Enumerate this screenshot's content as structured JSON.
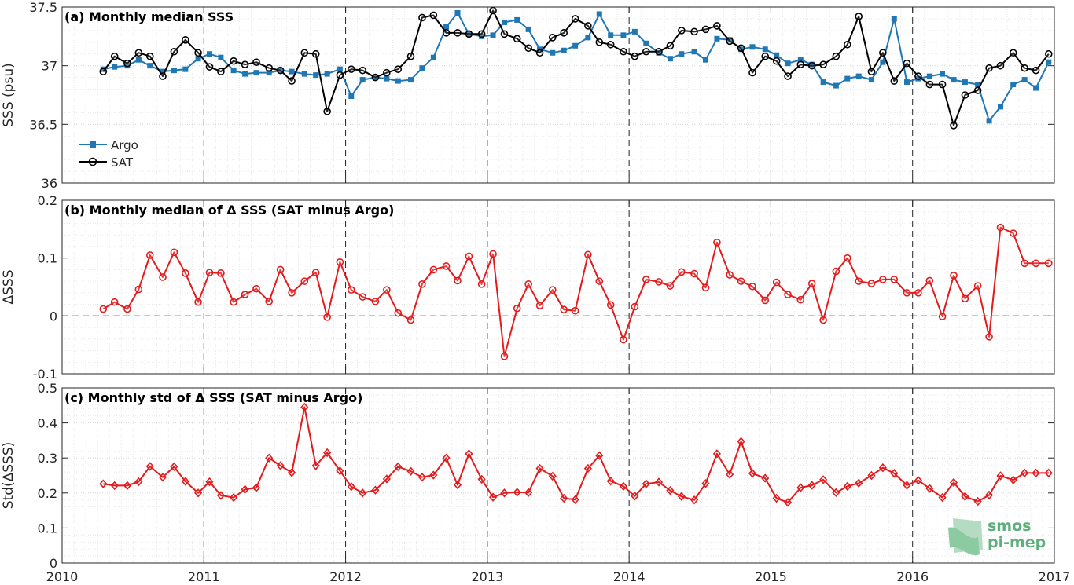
{
  "colors": {
    "argo": "#1f77b4",
    "sat": "#000000",
    "delta": "#e41a1c",
    "axis": "#262626"
  },
  "logo": {
    "line1": "smos",
    "line2": "pi-mep",
    "icon": "smos-pimep-logo-icon"
  },
  "chart_data": [
    {
      "type": "line",
      "title": "(a) Monthly median SSS",
      "ylabel": "SSS (psu)",
      "xlim": [
        2010,
        2017
      ],
      "ylim": [
        36,
        37.5
      ],
      "yticks": [
        36,
        36.5,
        37,
        37.5
      ],
      "ytick_labels": [
        "36",
        "36.5",
        "37",
        "37.5"
      ],
      "grid": true,
      "legend_position": "lower-left",
      "x": [
        2010.29,
        2010.37,
        2010.46,
        2010.54,
        2010.62,
        2010.71,
        2010.79,
        2010.87,
        2010.96,
        2011.04,
        2011.12,
        2011.21,
        2011.29,
        2011.37,
        2011.46,
        2011.54,
        2011.62,
        2011.71,
        2011.79,
        2011.87,
        2011.96,
        2012.04,
        2012.12,
        2012.21,
        2012.29,
        2012.37,
        2012.46,
        2012.54,
        2012.62,
        2012.71,
        2012.79,
        2012.87,
        2012.96,
        2013.04,
        2013.12,
        2013.21,
        2013.29,
        2013.37,
        2013.46,
        2013.54,
        2013.62,
        2013.71,
        2013.79,
        2013.87,
        2013.96,
        2014.04,
        2014.12,
        2014.21,
        2014.29,
        2014.37,
        2014.46,
        2014.54,
        2014.62,
        2014.71,
        2014.79,
        2014.87,
        2014.96,
        2015.04,
        2015.12,
        2015.21,
        2015.29,
        2015.37,
        2015.46,
        2015.54,
        2015.62,
        2015.71,
        2015.79,
        2015.87,
        2015.96,
        2016.04,
        2016.12,
        2016.21,
        2016.29,
        2016.37,
        2016.46,
        2016.54,
        2016.62,
        2016.71,
        2016.79,
        2016.87,
        2016.96
      ],
      "series": [
        {
          "name": "Argo",
          "marker": "square",
          "values": [
            36.97,
            36.99,
            37.0,
            37.05,
            37.0,
            36.95,
            36.96,
            36.97,
            37.06,
            37.1,
            37.07,
            36.96,
            36.93,
            36.94,
            36.94,
            36.96,
            36.95,
            36.93,
            36.92,
            36.93,
            36.97,
            36.74,
            36.88,
            36.9,
            36.89,
            36.87,
            36.88,
            36.98,
            37.07,
            37.33,
            37.45,
            37.27,
            37.25,
            37.26,
            37.37,
            37.39,
            37.31,
            37.14,
            37.11,
            37.13,
            37.17,
            37.24,
            37.44,
            37.26,
            37.26,
            37.29,
            37.19,
            37.11,
            37.06,
            37.1,
            37.12,
            37.05,
            37.23,
            37.22,
            37.14,
            37.16,
            37.14,
            37.09,
            37.02,
            37.05,
            37.01,
            36.86,
            36.83,
            36.89,
            36.91,
            36.88,
            37.03,
            37.4,
            36.86,
            36.89,
            36.91,
            36.93,
            36.88,
            36.86,
            36.84,
            36.53,
            36.65,
            36.84,
            36.88,
            36.81,
            37.03
          ]
        },
        {
          "name": "SAT",
          "marker": "circle",
          "values": [
            36.95,
            37.08,
            37.02,
            37.11,
            37.08,
            36.91,
            37.12,
            37.22,
            37.11,
            36.99,
            36.95,
            37.04,
            37.01,
            37.03,
            36.98,
            36.96,
            36.87,
            37.11,
            37.1,
            36.61,
            36.92,
            36.97,
            36.96,
            36.9,
            36.94,
            36.97,
            37.08,
            37.41,
            37.43,
            37.28,
            37.28,
            37.27,
            37.27,
            37.47,
            37.27,
            37.23,
            37.15,
            37.11,
            37.24,
            37.28,
            37.4,
            37.34,
            37.2,
            37.18,
            37.12,
            37.08,
            37.12,
            37.12,
            37.17,
            37.3,
            37.29,
            37.31,
            37.34,
            37.21,
            37.15,
            36.94,
            37.08,
            37.04,
            36.91,
            37.01,
            37.0,
            37.01,
            37.08,
            37.18,
            37.42,
            36.95,
            37.11,
            36.87,
            37.02,
            36.91,
            36.84,
            36.84,
            36.49,
            36.75,
            36.79,
            36.98,
            37.0,
            37.11,
            36.98,
            36.96,
            37.1
          ]
        }
      ]
    },
    {
      "type": "line",
      "title": "(b) Monthly median of Δ SSS (SAT minus Argo)",
      "ylabel": "ΔSSS",
      "xlim": [
        2010,
        2017
      ],
      "ylim": [
        -0.1,
        0.2
      ],
      "yticks": [
        -0.1,
        0,
        0.1,
        0.2
      ],
      "ytick_labels": [
        "-0.1",
        "0",
        "0.1",
        "0.2"
      ],
      "grid": true,
      "zero_line": true,
      "x": [
        2010.29,
        2010.37,
        2010.46,
        2010.54,
        2010.62,
        2010.71,
        2010.79,
        2010.87,
        2010.96,
        2011.04,
        2011.12,
        2011.21,
        2011.29,
        2011.37,
        2011.46,
        2011.54,
        2011.62,
        2011.71,
        2011.79,
        2011.87,
        2011.96,
        2012.04,
        2012.12,
        2012.21,
        2012.29,
        2012.37,
        2012.46,
        2012.54,
        2012.62,
        2012.71,
        2012.79,
        2012.87,
        2012.96,
        2013.04,
        2013.12,
        2013.21,
        2013.29,
        2013.37,
        2013.46,
        2013.54,
        2013.62,
        2013.71,
        2013.79,
        2013.87,
        2013.96,
        2014.04,
        2014.12,
        2014.21,
        2014.29,
        2014.37,
        2014.46,
        2014.54,
        2014.62,
        2014.71,
        2014.79,
        2014.87,
        2014.96,
        2015.04,
        2015.12,
        2015.21,
        2015.29,
        2015.37,
        2015.46,
        2015.54,
        2015.62,
        2015.71,
        2015.79,
        2015.87,
        2015.96,
        2016.04,
        2016.12,
        2016.21,
        2016.29,
        2016.37,
        2016.46,
        2016.54,
        2016.62,
        2016.71,
        2016.79,
        2016.87,
        2016.96
      ],
      "series": [
        {
          "name": "",
          "marker": "circle",
          "values": [
            0.012,
            0.024,
            0.012,
            0.046,
            0.105,
            0.067,
            0.11,
            0.074,
            0.024,
            0.075,
            0.074,
            0.024,
            0.037,
            0.047,
            0.025,
            0.08,
            0.04,
            0.06,
            0.075,
            -0.002,
            0.093,
            0.045,
            0.033,
            0.025,
            0.045,
            0.005,
            -0.007,
            0.055,
            0.08,
            0.086,
            0.061,
            0.103,
            0.055,
            0.107,
            -0.07,
            0.013,
            0.055,
            0.018,
            0.045,
            0.011,
            0.009,
            0.106,
            0.06,
            0.019,
            -0.041,
            0.016,
            0.063,
            0.059,
            0.052,
            0.076,
            0.073,
            0.049,
            0.127,
            0.071,
            0.06,
            0.051,
            0.027,
            0.058,
            0.037,
            0.028,
            0.056,
            -0.007,
            0.077,
            0.1,
            0.06,
            0.056,
            0.063,
            0.063,
            0.04,
            0.04,
            0.061,
            -0.001,
            0.07,
            0.03,
            0.052,
            -0.036,
            0.153,
            0.143,
            0.091,
            0.091,
            0.091
          ]
        }
      ]
    },
    {
      "type": "line",
      "title": "(c) Monthly std of Δ SSS (SAT minus Argo)",
      "ylabel": "Std(ΔSSS)",
      "xlabel": "",
      "xlim": [
        2010,
        2017
      ],
      "ylim": [
        0,
        0.5
      ],
      "yticks": [
        0,
        0.1,
        0.2,
        0.3,
        0.4,
        0.5
      ],
      "ytick_labels": [
        "0",
        "0.1",
        "0.2",
        "0.3",
        "0.4",
        "0.5"
      ],
      "xticks": [
        2010,
        2011,
        2012,
        2013,
        2014,
        2015,
        2016,
        2017
      ],
      "xtick_labels": [
        "2010",
        "2011",
        "2012",
        "2013",
        "2014",
        "2015",
        "2016",
        "2017"
      ],
      "grid": true,
      "x": [
        2010.29,
        2010.37,
        2010.46,
        2010.54,
        2010.62,
        2010.71,
        2010.79,
        2010.87,
        2010.96,
        2011.04,
        2011.12,
        2011.21,
        2011.29,
        2011.37,
        2011.46,
        2011.54,
        2011.62,
        2011.71,
        2011.79,
        2011.87,
        2011.96,
        2012.04,
        2012.12,
        2012.21,
        2012.29,
        2012.37,
        2012.46,
        2012.54,
        2012.62,
        2012.71,
        2012.79,
        2012.87,
        2012.96,
        2013.04,
        2013.12,
        2013.21,
        2013.29,
        2013.37,
        2013.46,
        2013.54,
        2013.62,
        2013.71,
        2013.79,
        2013.87,
        2013.96,
        2014.04,
        2014.12,
        2014.21,
        2014.29,
        2014.37,
        2014.46,
        2014.54,
        2014.62,
        2014.71,
        2014.79,
        2014.87,
        2014.96,
        2015.04,
        2015.12,
        2015.21,
        2015.29,
        2015.37,
        2015.46,
        2015.54,
        2015.62,
        2015.71,
        2015.79,
        2015.87,
        2015.96,
        2016.04,
        2016.12,
        2016.21,
        2016.29,
        2016.37,
        2016.46,
        2016.54,
        2016.62,
        2016.71,
        2016.79,
        2016.87,
        2016.96
      ],
      "series": [
        {
          "name": "",
          "marker": "diamond",
          "values": [
            0.226,
            0.221,
            0.221,
            0.232,
            0.276,
            0.245,
            0.275,
            0.233,
            0.2,
            0.232,
            0.193,
            0.187,
            0.21,
            0.215,
            0.3,
            0.278,
            0.258,
            0.445,
            0.278,
            0.315,
            0.263,
            0.218,
            0.2,
            0.208,
            0.24,
            0.275,
            0.262,
            0.245,
            0.251,
            0.3,
            0.223,
            0.312,
            0.239,
            0.188,
            0.2,
            0.202,
            0.201,
            0.27,
            0.248,
            0.185,
            0.181,
            0.27,
            0.307,
            0.234,
            0.219,
            0.191,
            0.226,
            0.231,
            0.207,
            0.19,
            0.18,
            0.227,
            0.312,
            0.253,
            0.347,
            0.256,
            0.242,
            0.185,
            0.173,
            0.215,
            0.222,
            0.238,
            0.201,
            0.219,
            0.228,
            0.25,
            0.272,
            0.256,
            0.222,
            0.236,
            0.213,
            0.187,
            0.23,
            0.19,
            0.176,
            0.194,
            0.249,
            0.237,
            0.257,
            0.257,
            0.257
          ]
        }
      ]
    }
  ]
}
